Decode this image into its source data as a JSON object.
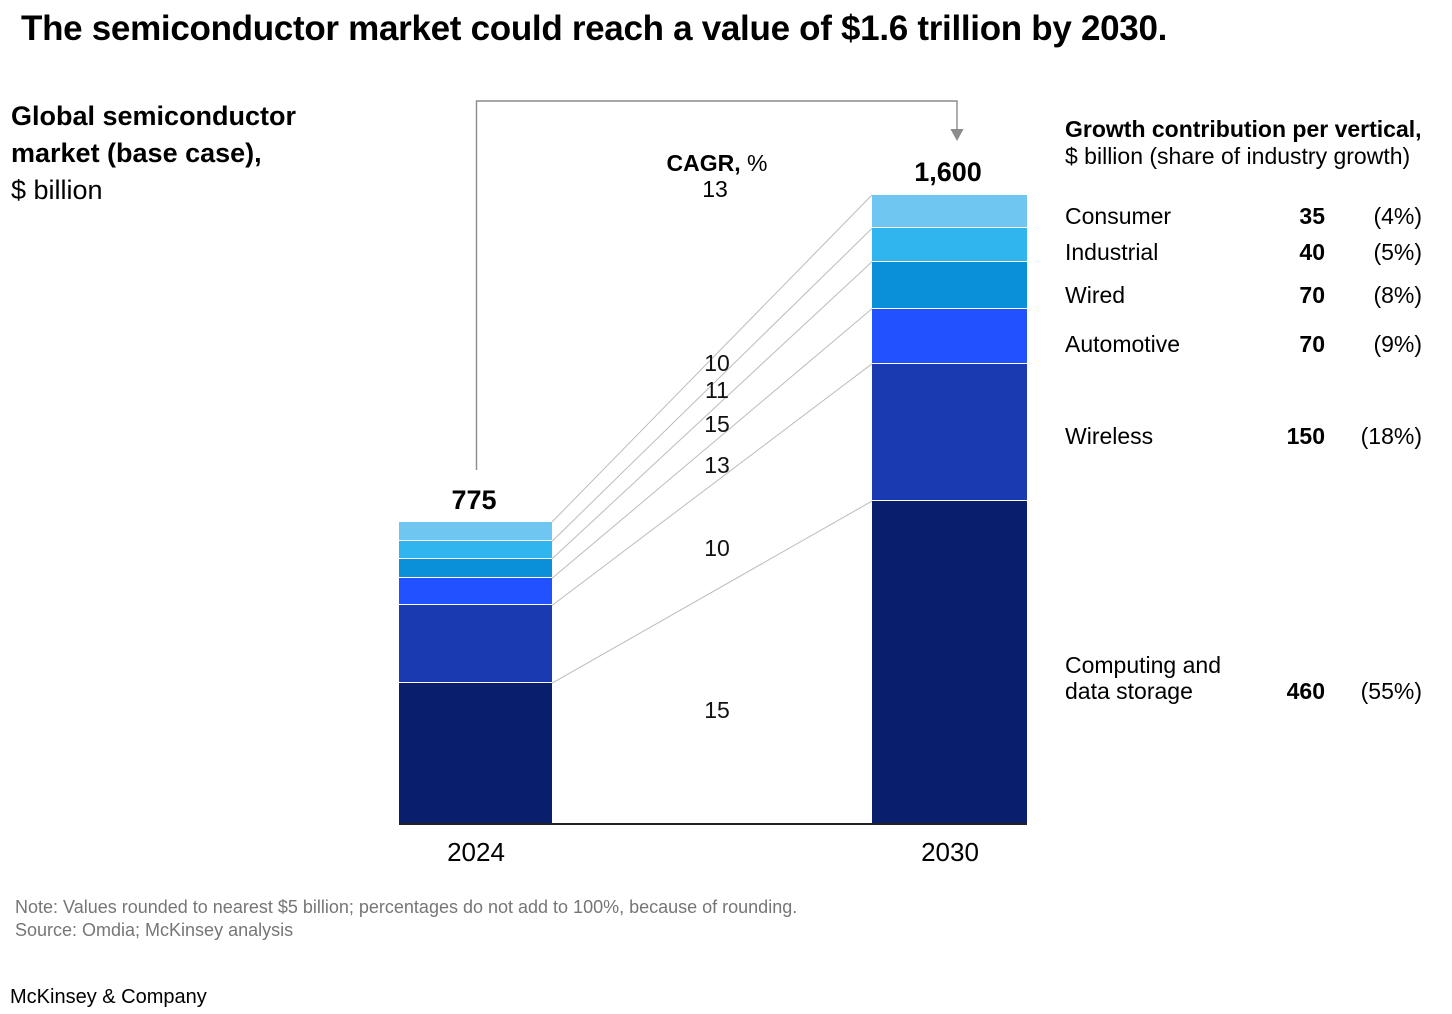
{
  "title": "The semiconductor market could reach a value of $1.6 trillion by 2030.",
  "chart": {
    "axis_title_line1": "Global semiconductor",
    "axis_title_line2": "market (base case),",
    "axis_title_line3": "$ billion",
    "cagr_header_bold": "CAGR,",
    "cagr_header_unit": "%",
    "overall_cagr": "13"
  },
  "chart_data": {
    "type": "stacked-bar",
    "title": "Global semiconductor market (base case), $ billion",
    "categories": [
      "2024",
      "2030"
    ],
    "totals": [
      775,
      1600
    ],
    "totals_label": [
      "775",
      "1,600"
    ],
    "series": [
      {
        "name": "Consumer",
        "color": "#6EC6F1",
        "values": [
          50,
          85
        ],
        "cagr_pct": "10"
      },
      {
        "name": "Industrial",
        "color": "#30B5EE",
        "values": [
          45,
          85
        ],
        "cagr_pct": "11"
      },
      {
        "name": "Wired",
        "color": "#0990D9",
        "values": [
          50,
          120
        ],
        "cagr_pct": "15"
      },
      {
        "name": "Automotive",
        "color": "#2251FF",
        "values": [
          70,
          140
        ],
        "cagr_pct": "13"
      },
      {
        "name": "Wireless",
        "color": "#1A3AB2",
        "values": [
          200,
          350
        ],
        "cagr_pct": "10"
      },
      {
        "name": "Computing and data storage",
        "color": "#0A1E6E",
        "values": [
          360,
          820
        ],
        "cagr_pct": "15"
      }
    ],
    "overall_cagr_pct": "13",
    "legend_position": "right",
    "grid": false
  },
  "growth_panel": {
    "header_bold": "Growth contribution per vertical,",
    "header_sub": "$ billion (share of industry growth)",
    "rows": [
      {
        "label": "Consumer",
        "label_lines": [
          "Consumer"
        ],
        "value": "35",
        "share": "(4%)"
      },
      {
        "label": "Industrial",
        "label_lines": [
          "Industrial"
        ],
        "value": "40",
        "share": "(5%)"
      },
      {
        "label": "Wired",
        "label_lines": [
          "Wired"
        ],
        "value": "70",
        "share": "(8%)"
      },
      {
        "label": "Automotive",
        "label_lines": [
          "Automotive"
        ],
        "value": "70",
        "share": "(9%)"
      },
      {
        "label": "Wireless",
        "label_lines": [
          "Wireless"
        ],
        "value": "150",
        "share": "(18%)"
      },
      {
        "label": "Computing and data storage",
        "label_lines": [
          "Computing and",
          "data storage"
        ],
        "value": "460",
        "share": "(55%)"
      }
    ]
  },
  "footer": {
    "note": "Note: Values rounded to nearest $5 billion; percentages do not add to 100%, because of rounding.",
    "source": "Source: Omdia; McKinsey analysis",
    "brand": "McKinsey & Company"
  },
  "colors": {
    "connector_line": "#bcbcbc",
    "arrow": "#8c8c8c",
    "axis": "#222222",
    "muted_text": "#767676"
  }
}
